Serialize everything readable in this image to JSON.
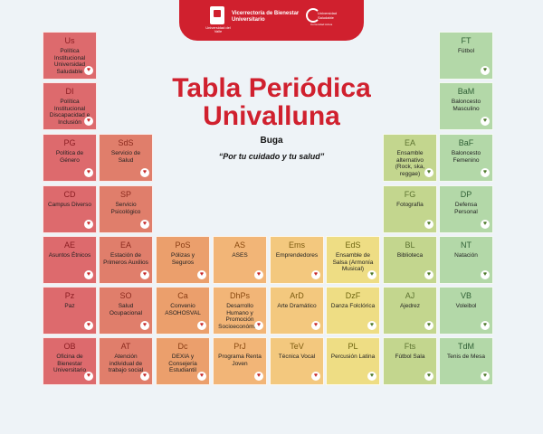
{
  "header": {
    "logo_caption": "Universidad del Valle",
    "vice": "Vicerrectoría de Bienestar Universitario",
    "us_label": "Universidad Saludable",
    "us_sub": "Comunidad Activa"
  },
  "title_line1": "Tabla Periódica",
  "title_line2": "Univalluna",
  "subtitle": "Buga",
  "slogan": "“Por tu cuidado y tu salud”",
  "colors": {
    "col1": "#dd6a6d",
    "col2": "#e07e6b",
    "col3": "#eb9f6c",
    "col4": "#f2b577",
    "col5": "#f3c87e",
    "col6": "#eedd84",
    "col7": "#c3d68e",
    "col8": "#b3d8a8",
    "header_red": "#d0202e"
  },
  "cells": [
    {
      "col": 1,
      "row": 1,
      "symbol": "Us",
      "name": "Política Institucional Universidad Saludable",
      "heart": "heart-icon"
    },
    {
      "col": 1,
      "row": 2,
      "symbol": "DI",
      "name": "Política Institucional Discapacidad e Inclusión",
      "heart": "heart-icon"
    },
    {
      "col": 1,
      "row": 3,
      "symbol": "PG",
      "name": "Política de Género",
      "heart": "heart-icon"
    },
    {
      "col": 1,
      "row": 4,
      "symbol": "CD",
      "name": "Campus Diverso",
      "heart": "heart-icon"
    },
    {
      "col": 1,
      "row": 5,
      "symbol": "AE",
      "name": "Asuntos Étnicos",
      "heart": "heart-icon"
    },
    {
      "col": 1,
      "row": 6,
      "symbol": "Pz",
      "name": "Paz",
      "heart": "heart-icon"
    },
    {
      "col": 1,
      "row": 7,
      "symbol": "OB",
      "name": "Oficina de Bienestar Universitario",
      "heart": "heart-icon"
    },
    {
      "col": 2,
      "row": 3,
      "symbol": "SdS",
      "name": "Servicio de Salud",
      "heart": "heart-icon"
    },
    {
      "col": 2,
      "row": 4,
      "symbol": "SP",
      "name": "Servicio Psicológico",
      "heart": "heart-icon"
    },
    {
      "col": 2,
      "row": 5,
      "symbol": "EA",
      "name": "Estación de Primeros Auxilios",
      "heart": "heart-icon"
    },
    {
      "col": 2,
      "row": 6,
      "symbol": "SO",
      "name": "Salud Ocupacional",
      "heart": "heart-icon"
    },
    {
      "col": 2,
      "row": 7,
      "symbol": "AT",
      "name": "Atención individual de trabajo social",
      "heart": "heart-icon"
    },
    {
      "col": 3,
      "row": 5,
      "symbol": "PoS",
      "name": "Pólizas y Seguros",
      "heart": "heart-icon"
    },
    {
      "col": 3,
      "row": 6,
      "symbol": "Ca",
      "name": "Convenio ASOHOSVAL",
      "heart": "heart-icon"
    },
    {
      "col": 3,
      "row": 7,
      "symbol": "Dc",
      "name": "DEXIA y Consejería Estudiantil",
      "heart": "heart-icon"
    },
    {
      "col": 4,
      "row": 5,
      "symbol": "AS",
      "name": "ASES",
      "heart": "heart-icon"
    },
    {
      "col": 4,
      "row": 6,
      "symbol": "DhPs",
      "name": "Desarrollo Humano y Promoción Socioeconómica",
      "heart": "heart-icon"
    },
    {
      "col": 4,
      "row": 7,
      "symbol": "PrJ",
      "name": "Programa Renta Joven",
      "heart": "heart-icon"
    },
    {
      "col": 5,
      "row": 5,
      "symbol": "Ems",
      "name": "Emprendedores",
      "heart": "heart-icon"
    },
    {
      "col": 5,
      "row": 6,
      "symbol": "ArD",
      "name": "Arte Dramático",
      "heart": "heart-icon"
    },
    {
      "col": 5,
      "row": 7,
      "symbol": "TeV",
      "name": "Técnica Vocal",
      "heart": "heart-icon"
    },
    {
      "col": 6,
      "row": 5,
      "symbol": "EdS",
      "name": "Ensamble de Salsa (Armonía Musical)",
      "heart": "heart-icon"
    },
    {
      "col": 6,
      "row": 6,
      "symbol": "DzF",
      "name": "Danza Folclórica",
      "heart": "heart-icon"
    },
    {
      "col": 6,
      "row": 7,
      "symbol": "PL",
      "name": "Percusión Latina",
      "heart": "heart-icon"
    },
    {
      "col": 7,
      "row": 3,
      "symbol": "EA",
      "name": "Ensamble alternativo (Rock, ska, reggae)",
      "heart": "heart-icon"
    },
    {
      "col": 7,
      "row": 4,
      "symbol": "FG",
      "name": "Fotografía",
      "heart": "heart-icon"
    },
    {
      "col": 7,
      "row": 5,
      "symbol": "BL",
      "name": "Biblioteca",
      "heart": "heart-icon"
    },
    {
      "col": 7,
      "row": 6,
      "symbol": "AJ",
      "name": "Ajedrez",
      "heart": "heart-icon"
    },
    {
      "col": 7,
      "row": 7,
      "symbol": "Fts",
      "name": "Fútbol Sala",
      "heart": "heart-icon"
    },
    {
      "col": 8,
      "row": 1,
      "symbol": "FT",
      "name": "Fútbol",
      "heart": "heart-icon"
    },
    {
      "col": 8,
      "row": 2,
      "symbol": "BaM",
      "name": "Baloncesto Masculino",
      "heart": "heart-icon"
    },
    {
      "col": 8,
      "row": 3,
      "symbol": "BaF",
      "name": "Baloncesto Femenino",
      "heart": "heart-icon"
    },
    {
      "col": 8,
      "row": 4,
      "symbol": "DP",
      "name": "Defensa Personal",
      "heart": "heart-icon"
    },
    {
      "col": 8,
      "row": 5,
      "symbol": "NT",
      "name": "Natación",
      "heart": "heart-icon"
    },
    {
      "col": 8,
      "row": 6,
      "symbol": "VB",
      "name": "Voleibol",
      "heart": "heart-icon"
    },
    {
      "col": 8,
      "row": 7,
      "symbol": "TdM",
      "name": "Tenis de Mesa",
      "heart": "heart-icon"
    }
  ]
}
